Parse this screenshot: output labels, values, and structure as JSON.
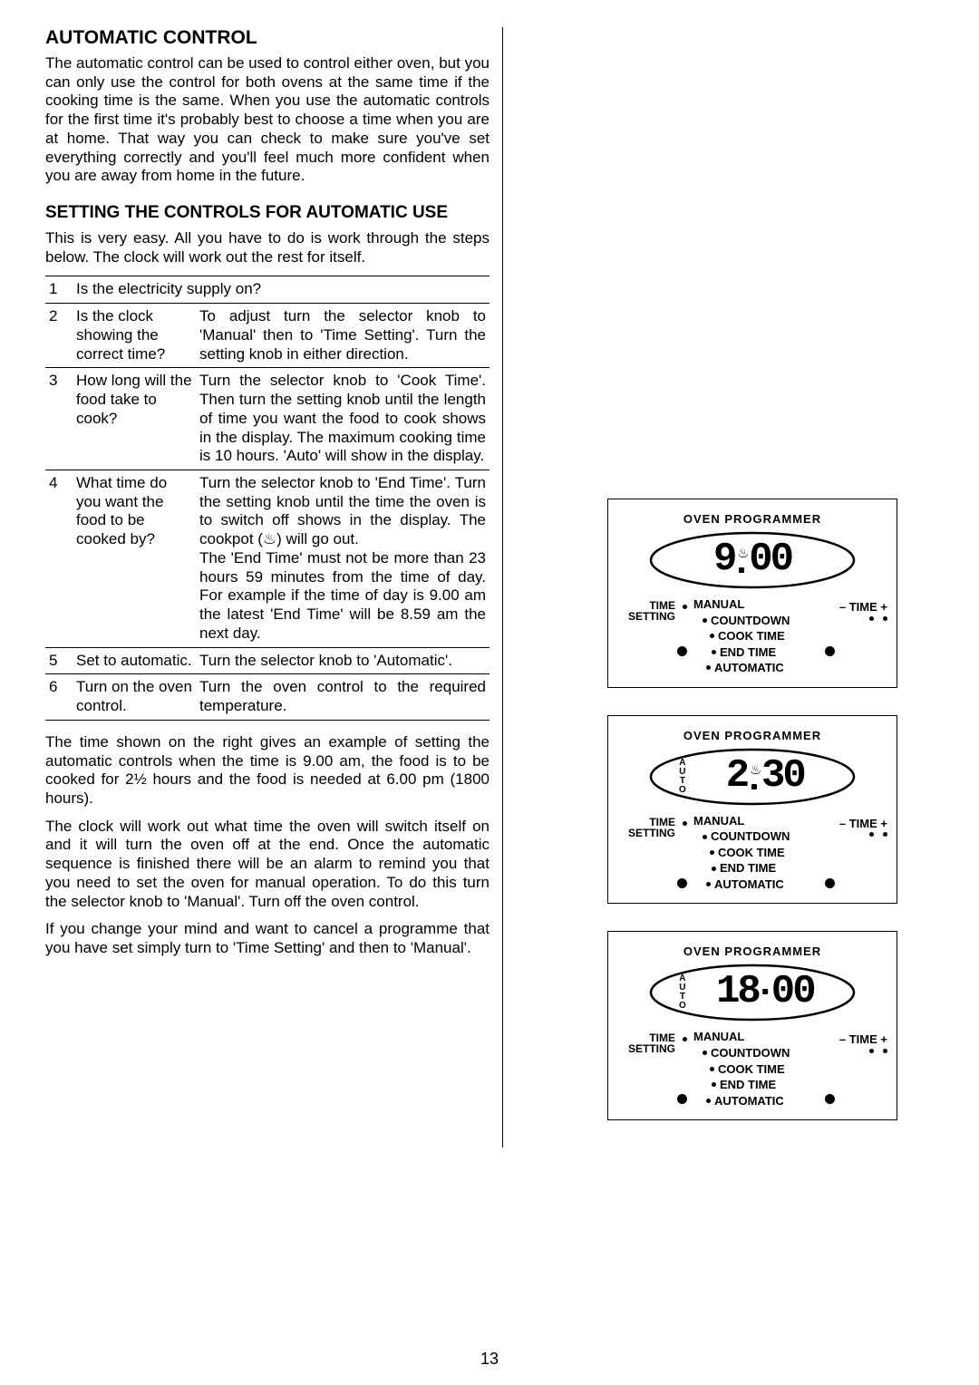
{
  "page_number": "13",
  "left": {
    "title": "AUTOMATIC CONTROL",
    "intro": "The automatic control can be used to control either oven, but you can only use the control for both ovens at the same time if the cooking time is the same. When you use the automatic controls for the first time it's probably best to choose a time when you are at home.  That way you can check to make sure you've set everything correctly and you'll feel much more confident when you are away from home in the future.",
    "subheading": "SETTING THE CONTROLS FOR AUTOMATIC USE",
    "sub_intro": "This is very easy.  All you have to do is work through the steps below.  The clock will work out the rest for itself.",
    "steps": [
      {
        "n": "1",
        "q": "Is the electricity supply on?",
        "a": "",
        "full": true
      },
      {
        "n": "2",
        "q": "Is the clock showing the correct time?",
        "a": "To adjust turn the selector knob to 'Manual' then to 'Time Setting'.  Turn the setting knob in either direction."
      },
      {
        "n": "3",
        "q": "How long will the food take to cook?",
        "a": "Turn the selector knob to 'Cook Time'. Then turn the setting knob until the length of time you want the food to cook shows in the display.  The maximum cooking time is 10 hours.  'Auto' will show in the display."
      },
      {
        "n": "4",
        "q": "What time do you want the food to be cooked by?",
        "a": "Turn the selector knob to 'End Time'.  Turn the setting knob until the time the oven is to switch off shows in the display. The cookpot (♨) will go out.\nThe 'End Time' must not be more than 23 hours 59 minutes from the time of day.  For example if the time of day is 9.00 am the latest 'End Time' will be 8.59 am the next day."
      },
      {
        "n": "5",
        "q": "Set to automatic.",
        "a": "Turn the selector knob to 'Automatic'."
      },
      {
        "n": "6",
        "q": "Turn on the oven control.",
        "a": "Turn the oven control to the required temperature."
      }
    ],
    "para1": "The time shown on the right gives an example of setting the automatic controls when the time is 9.00 am, the food is to be cooked for 2½ hours and the food is needed at 6.00 pm (1800 hours).",
    "para2": "The clock will work out what time the oven will switch itself on and it will turn the oven off at the end.  Once the automatic sequence is finished there will be an alarm to remind you that you need to set the oven for manual operation.  To do this turn the selector knob to 'Manual'. Turn off the oven control.",
    "para3": "If you change your mind and want to cancel a programme that you have set simply turn to 'Time Setting' and then to 'Manual'."
  },
  "panels": {
    "header": "OVEN   PROGRAMMER",
    "menu": {
      "manual": "MANUAL",
      "countdown": "COUNTDOWN",
      "cook_time": "COOK TIME",
      "end_time": "END TIME",
      "automatic": "AUTOMATIC"
    },
    "time_setting_top": "TIME",
    "time_setting_bottom": "SETTING",
    "time_plus": "– TIME +",
    "panel1": {
      "display": "9",
      "display2": "00",
      "show_pot": true,
      "show_auto": false,
      "left_big_dot_index": 3,
      "right_big_dot_index": 3
    },
    "panel2": {
      "display": "2",
      "display2": "30",
      "show_pot": true,
      "show_auto": true,
      "left_big_dot_index": 4,
      "right_big_dot_index": 4
    },
    "panel3": {
      "display": "18",
      "display2": "00",
      "show_pot": false,
      "show_auto": true,
      "left_big_dot_index": 4,
      "right_big_dot_index": 4
    }
  },
  "colors": {
    "text": "#000000",
    "bg": "#ffffff",
    "border": "#000000"
  }
}
